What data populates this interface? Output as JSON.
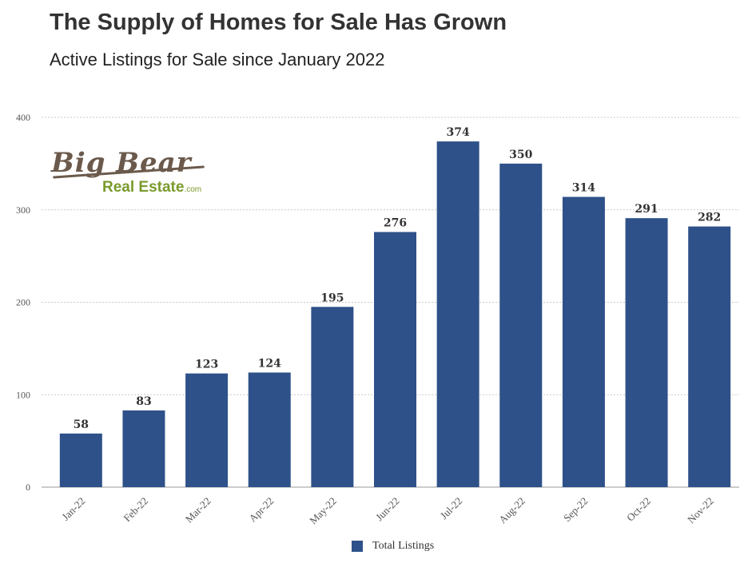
{
  "header": {
    "title": "The Supply of Homes for Sale Has Grown",
    "subtitle": "Active Listings for Sale since January 2022"
  },
  "logo": {
    "script_text": "Big Bear",
    "sub_text": "Real Estate",
    "sub_suffix": ".com"
  },
  "colors": {
    "bar": "#2e5189",
    "gridline": "#c8c8c8",
    "logo_brown": "#6b5a4c",
    "logo_green": "#7a9a2c"
  },
  "chart_data": {
    "type": "bar",
    "title": "The Supply of Homes for Sale Has Grown",
    "subtitle": "Active Listings for Sale since January 2022",
    "categories": [
      "Jan-22",
      "Feb-22",
      "Mar-22",
      "Apr-22",
      "May-22",
      "Jun-22",
      "Jul-22",
      "Aug-22",
      "Sep-22",
      "Oct-22",
      "Nov-22"
    ],
    "series": [
      {
        "name": "Total Listings",
        "values": [
          58,
          83,
          123,
          124,
          195,
          276,
          374,
          350,
          314,
          291,
          282
        ]
      }
    ],
    "ylim": [
      0,
      400
    ],
    "yticks": [
      0,
      100,
      200,
      300,
      400
    ],
    "grid": true,
    "data_labels": true,
    "legend": "bottom-center"
  }
}
